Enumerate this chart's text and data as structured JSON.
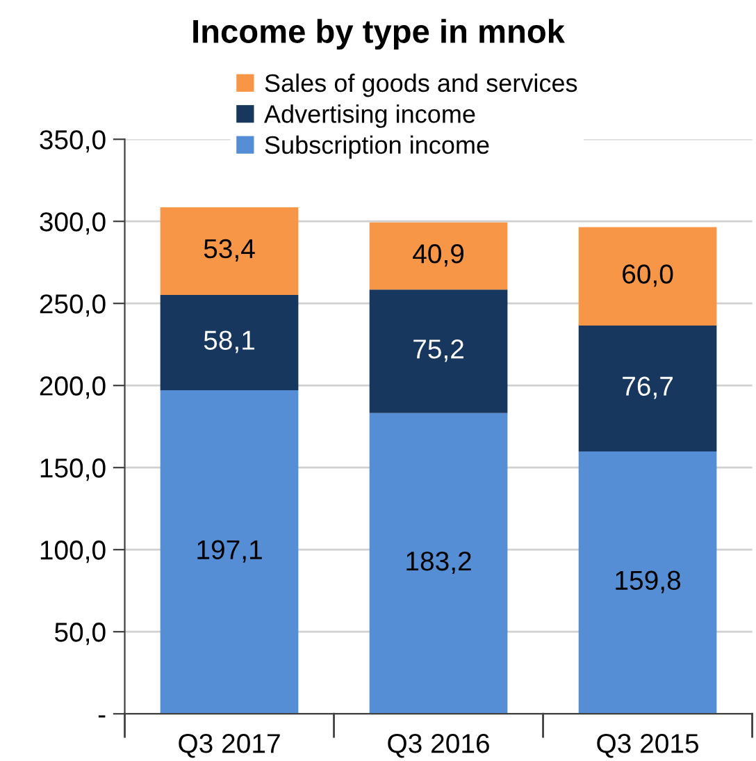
{
  "chart_data": {
    "type": "bar",
    "title": "Income by type in mnok",
    "stacked": true,
    "categories": [
      "Q3 2017",
      "Q3 2016",
      "Q3 2015"
    ],
    "series": [
      {
        "name": "Subscription income",
        "color": "#558ed5",
        "values": [
          197.1,
          183.2,
          159.8
        ],
        "value_labels": [
          "197,1",
          "183,2",
          "159,8"
        ]
      },
      {
        "name": "Advertising income",
        "color": "#17375e",
        "values": [
          58.1,
          75.2,
          76.7
        ],
        "value_labels": [
          "58,1",
          "75,2",
          "76,7"
        ]
      },
      {
        "name": "Sales of goods and services",
        "color": "#f79646",
        "values": [
          53.4,
          40.9,
          60.0
        ],
        "value_labels": [
          "53,4",
          "40,9",
          "60,0"
        ]
      }
    ],
    "ylim": [
      0,
      350
    ],
    "yticks": [
      {
        "value": 0,
        "label": "-"
      },
      {
        "value": 50,
        "label": "50,0"
      },
      {
        "value": 100,
        "label": "100,0"
      },
      {
        "value": 150,
        "label": "150,0"
      },
      {
        "value": 200,
        "label": "200,0"
      },
      {
        "value": 250,
        "label": "250,0"
      },
      {
        "value": 300,
        "label": "300,0"
      },
      {
        "value": 350,
        "label": "350,0"
      }
    ],
    "grid": "y",
    "legend": "top"
  }
}
